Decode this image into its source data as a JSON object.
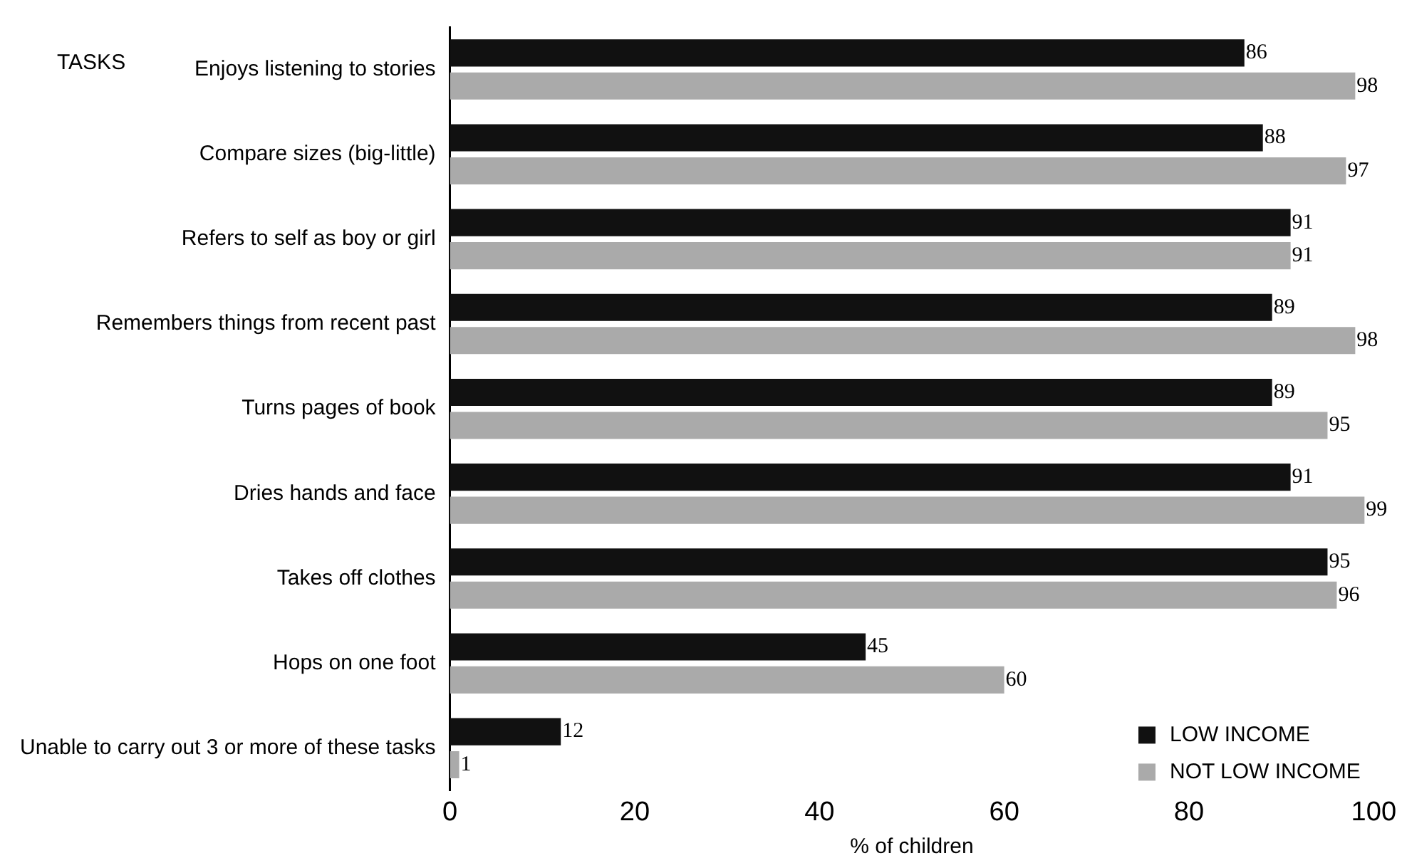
{
  "chart_data": {
    "type": "bar",
    "orientation": "horizontal",
    "ylabel": "TASKS",
    "xlabel": "% of children",
    "categories": [
      "Enjoys listening to stories",
      "Compare sizes (big-little)",
      "Refers to self as boy or girl",
      "Remembers things from recent past",
      "Turns pages of book",
      "Dries hands and face",
      "Takes off clothes",
      "Hops on one foot",
      "Unable to carry out 3 or more of these tasks"
    ],
    "series": [
      {
        "name": "LOW INCOME",
        "color": "#111111",
        "values": [
          86,
          88,
          91,
          89,
          89,
          91,
          95,
          45,
          12
        ]
      },
      {
        "name": "NOT LOW INCOME",
        "color": "#aaaaaa",
        "values": [
          98,
          97,
          91,
          98,
          95,
          99,
          96,
          60,
          1
        ]
      }
    ],
    "xlim": [
      0,
      100
    ],
    "xticks": [
      0,
      20,
      40,
      60,
      80,
      100
    ],
    "data_labels": true,
    "legend": "bottom right",
    "grid": false
  }
}
